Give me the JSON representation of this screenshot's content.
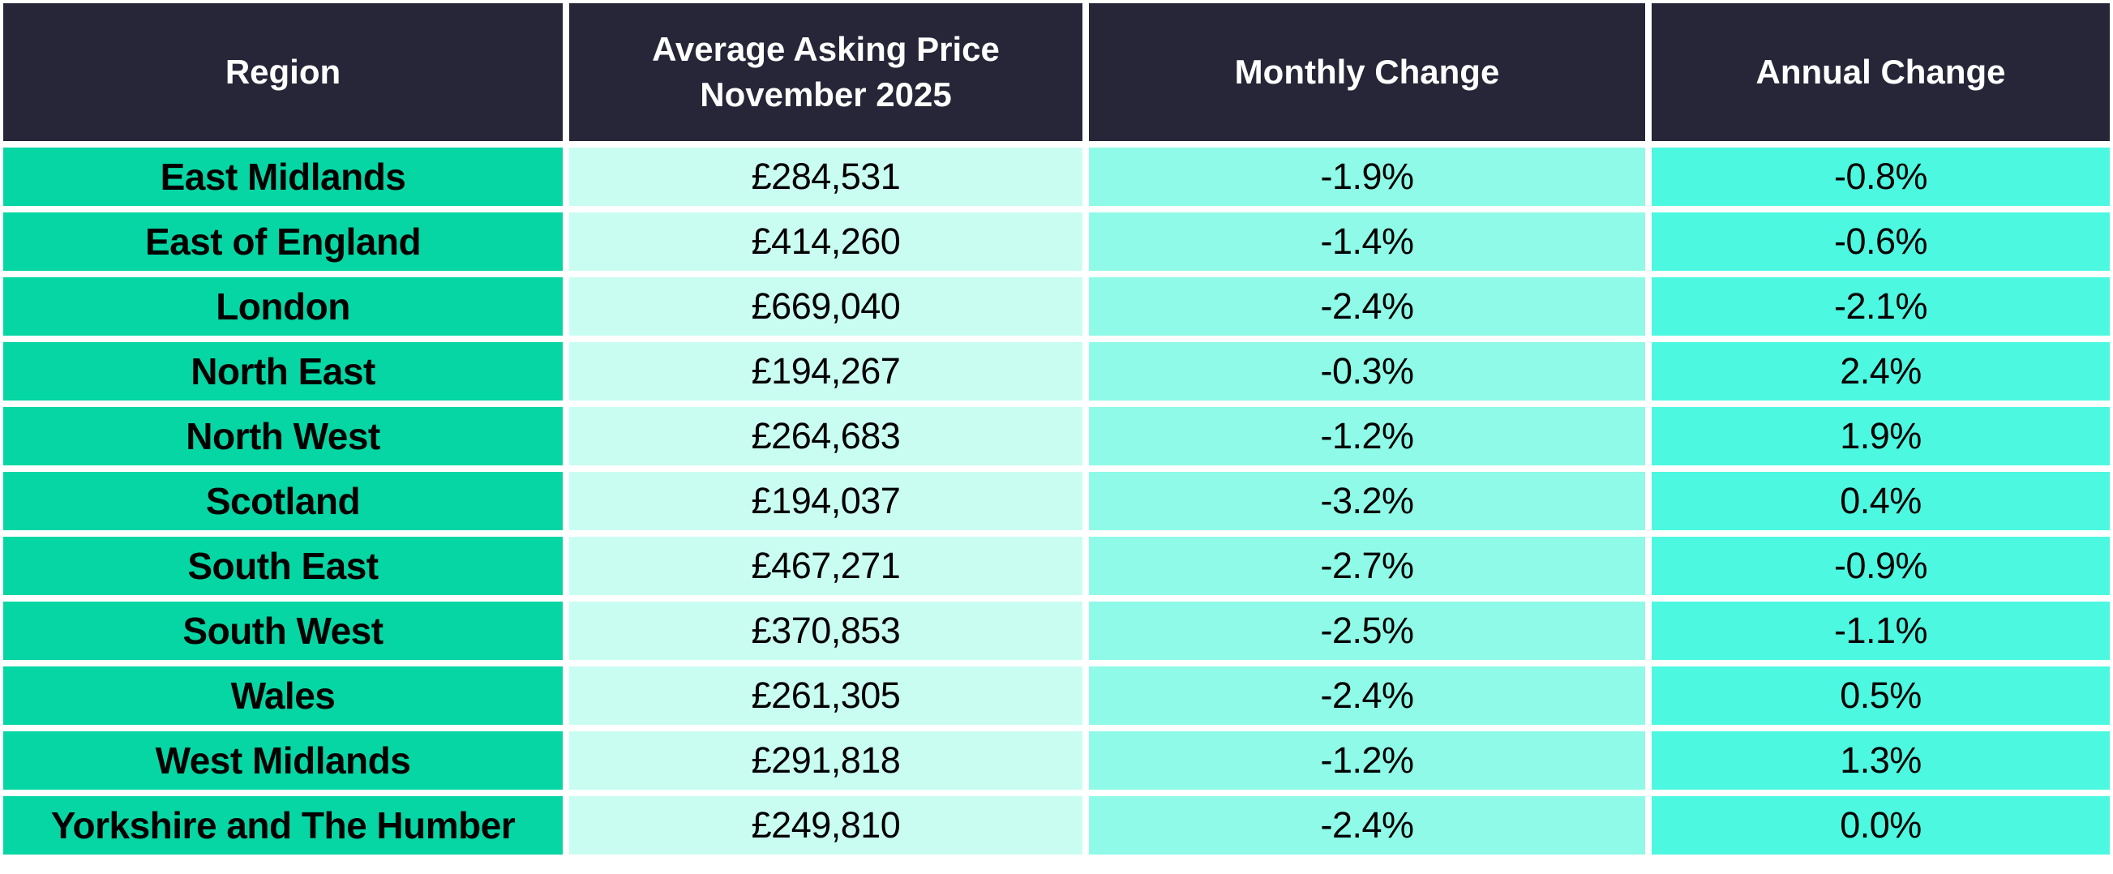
{
  "colors": {
    "background": "#ffffff",
    "header_bg": "#272638",
    "header_text": "#ffffff",
    "region_cell_bg": "#06d6a4",
    "price_cell_bg": "#cafdf2",
    "monthly_cell_bg": "#8ffae7",
    "annual_cell_bg": "#4df8e0",
    "body_text": "#000000"
  },
  "header": {
    "region": "Region",
    "price_line1": "Average Asking Price",
    "price_line2": "November 2025",
    "monthly": "Monthly Change",
    "annual": "Annual Change"
  },
  "chart_data": {
    "type": "table",
    "columns": [
      "Region",
      "Average Asking Price November 2025",
      "Monthly Change",
      "Annual Change"
    ],
    "rows": [
      [
        "East Midlands",
        "£284,531",
        "-1.9%",
        "-0.8%"
      ],
      [
        "East of England",
        "£414,260",
        "-1.4%",
        "-0.6%"
      ],
      [
        "London",
        "£669,040",
        "-2.4%",
        "-2.1%"
      ],
      [
        "North East",
        "£194,267",
        "-0.3%",
        "2.4%"
      ],
      [
        "North West",
        "£264,683",
        "-1.2%",
        "1.9%"
      ],
      [
        "Scotland",
        "£194,037",
        "-3.2%",
        "0.4%"
      ],
      [
        "South East",
        "£467,271",
        "-2.7%",
        "-0.9%"
      ],
      [
        "South West",
        "£370,853",
        "-2.5%",
        "-1.1%"
      ],
      [
        "Wales",
        "£261,305",
        "-2.4%",
        "0.5%"
      ],
      [
        "West Midlands",
        "£291,818",
        "-1.2%",
        "1.3%"
      ],
      [
        "Yorkshire and The Humber",
        "£249,810",
        "-2.4%",
        "0.0%"
      ]
    ]
  }
}
